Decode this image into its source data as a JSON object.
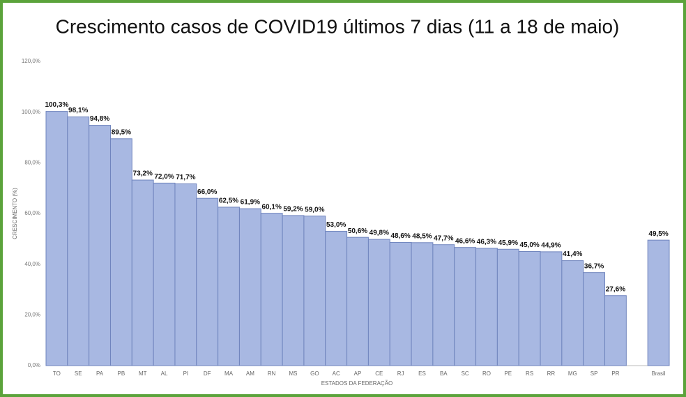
{
  "chart_data": {
    "type": "bar",
    "title": "Crescimento casos de COVID19 últimos 7 dias (11 a 18 de maio)",
    "x_label": "ESTADOS DA FEDERAÇÃO",
    "y_label": "CRESCIMENTO (%)",
    "categories": [
      "TO",
      "SE",
      "PA",
      "PB",
      "MT",
      "AL",
      "PI",
      "DF",
      "MA",
      "AM",
      "RN",
      "MS",
      "GO",
      "AC",
      "AP",
      "CE",
      "RJ",
      "ES",
      "BA",
      "SC",
      "RO",
      "PE",
      "RS",
      "RR",
      "MG",
      "SP",
      "PR",
      null,
      "Brasil"
    ],
    "values": [
      100.3,
      98.1,
      94.8,
      89.5,
      73.2,
      72.0,
      71.7,
      66.0,
      62.5,
      61.9,
      60.1,
      59.2,
      59.0,
      53.0,
      50.6,
      49.8,
      48.6,
      48.5,
      47.7,
      46.6,
      46.3,
      45.9,
      45.0,
      44.9,
      41.4,
      36.7,
      27.6,
      null,
      49.5
    ],
    "value_labels": [
      "100,3%",
      "98,1%",
      "94,8%",
      "89,5%",
      "73,2%",
      "72,0%",
      "71,7%",
      "66,0%",
      "62,5%",
      "61,9%",
      "60,1%",
      "59,2%",
      "59,0%",
      "53,0%",
      "50,6%",
      "49,8%",
      "48,6%",
      "48,5%",
      "47,7%",
      "46,6%",
      "46,3%",
      "45,9%",
      "45,0%",
      "44,9%",
      "41,4%",
      "36,7%",
      "27,6%",
      null,
      "49,5%"
    ],
    "color": "#a8b8e2",
    "ylim": [
      0,
      120
    ],
    "yticks": [
      {
        "value": 0,
        "label": "0,0%"
      },
      {
        "value": 20,
        "label": "20,0%"
      },
      {
        "value": 40,
        "label": "40,0%"
      },
      {
        "value": 60,
        "label": "60,0%"
      },
      {
        "value": 80,
        "label": "80,0%"
      },
      {
        "value": 100,
        "label": "100,0%"
      },
      {
        "value": 120,
        "label": "120,0%"
      }
    ],
    "grid": false
  }
}
